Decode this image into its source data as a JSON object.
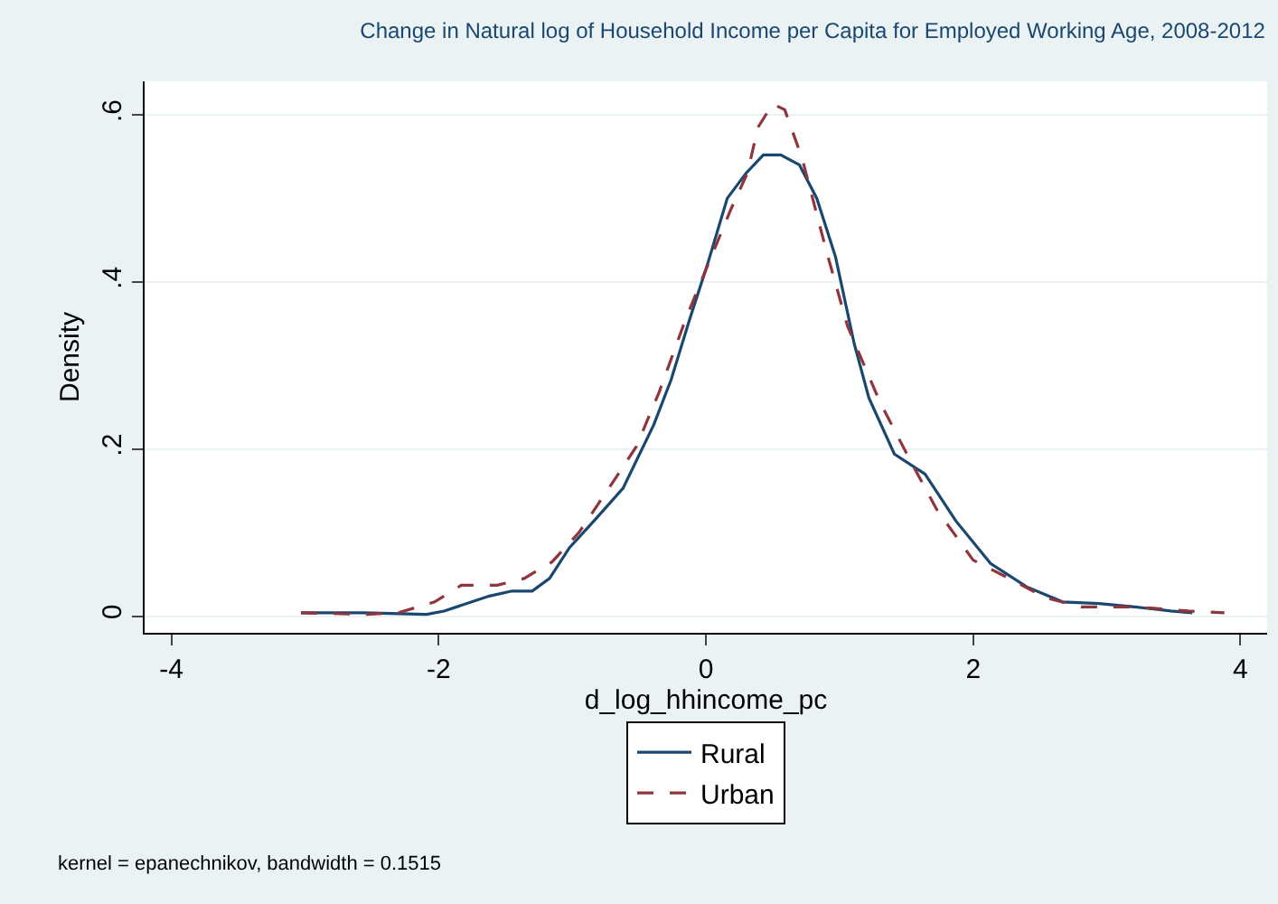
{
  "chart_data": {
    "type": "line",
    "title": "Change in Natural log of Household Income per Capita for Employed Working Age, 2008-2012",
    "xlabel": "d_log_hhincome_pc",
    "ylabel": "Density",
    "xlim": [
      -4.2,
      4.2
    ],
    "ylim": [
      -0.02,
      0.64
    ],
    "xticks": [
      -4,
      -2,
      0,
      2,
      4
    ],
    "yticks": [
      {
        "value": 0,
        "label": "0"
      },
      {
        "value": 0.2,
        "label": ".2"
      },
      {
        "value": 0.4,
        "label": ".4"
      },
      {
        "value": 0.6,
        "label": ".6"
      }
    ],
    "grid": "y",
    "legend": "bottom",
    "marker": "none",
    "annotations": [
      "kernel = epanechnikov, bandwidth = 0.1515"
    ],
    "series": [
      {
        "name": "Rural",
        "color": "#1a476f",
        "line_style": "solid",
        "x": [
          -3.03,
          -2.56,
          -2.09,
          -1.96,
          -1.62,
          -1.45,
          -1.3,
          -1.17,
          -1.02,
          -0.82,
          -0.62,
          -0.39,
          -0.26,
          -0.12,
          0.01,
          0.16,
          0.3,
          0.43,
          0.56,
          0.7,
          0.83,
          0.97,
          1.11,
          1.22,
          1.41,
          1.64,
          1.87,
          2.13,
          2.4,
          2.67,
          2.94,
          3.21,
          3.48,
          3.64
        ],
        "values": [
          0.004,
          0.004,
          0.002,
          0.006,
          0.024,
          0.03,
          0.03,
          0.045,
          0.082,
          0.117,
          0.153,
          0.229,
          0.283,
          0.356,
          0.42,
          0.5,
          0.53,
          0.552,
          0.552,
          0.54,
          0.5,
          0.43,
          0.326,
          0.261,
          0.194,
          0.17,
          0.114,
          0.063,
          0.035,
          0.017,
          0.015,
          0.011,
          0.006,
          0.004
        ]
      },
      {
        "name": "Urban",
        "color": "#90353b",
        "line_style": "dashed",
        "x": [
          -3.03,
          -2.56,
          -2.3,
          -2.03,
          -1.83,
          -1.56,
          -1.36,
          -1.15,
          -0.95,
          -0.68,
          -0.52,
          -0.35,
          -0.15,
          0.05,
          0.19,
          0.31,
          0.39,
          0.5,
          0.59,
          0.72,
          0.9,
          1.06,
          1.3,
          1.53,
          1.73,
          2.0,
          2.27,
          2.54,
          2.81,
          3.21,
          3.61,
          3.88
        ],
        "values": [
          0.004,
          0.002,
          0.004,
          0.017,
          0.037,
          0.037,
          0.045,
          0.065,
          0.1,
          0.164,
          0.203,
          0.268,
          0.356,
          0.434,
          0.488,
          0.53,
          0.585,
          0.613,
          0.606,
          0.548,
          0.438,
          0.347,
          0.257,
          0.186,
          0.127,
          0.067,
          0.045,
          0.022,
          0.011,
          0.011,
          0.006,
          0.004
        ]
      }
    ]
  }
}
